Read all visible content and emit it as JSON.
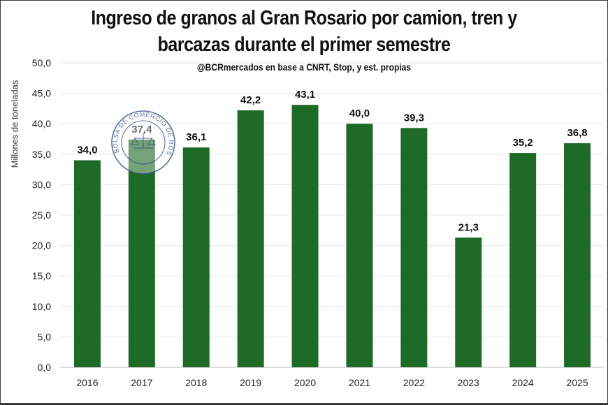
{
  "chart_data": {
    "type": "bar",
    "title_line1": "Ingreso de granos al Gran Rosario por camion, tren y",
    "title_line2": "barcazas durante el primer semestre",
    "subtitle": "@BCRmercados  en base a CNRT,  Stop, y est. propias",
    "ylabel": "Millones de toneladas",
    "xlabel": "",
    "categories": [
      "2016",
      "2017",
      "2018",
      "2019",
      "2020",
      "2021",
      "2022",
      "2023",
      "2024",
      "2025"
    ],
    "values": [
      34.0,
      37.4,
      36.1,
      42.2,
      43.1,
      40.0,
      39.3,
      21.3,
      35.2,
      36.8
    ],
    "value_labels": [
      "34,0",
      "37,4",
      "36,1",
      "42,2",
      "43,1",
      "40,0",
      "39,3",
      "21,3",
      "35,2",
      "36,8"
    ],
    "yticks": [
      "0,0",
      "5,0",
      "10,0",
      "15,0",
      "20,0",
      "25,0",
      "30,0",
      "35,0",
      "40,0",
      "45,0",
      "50,0"
    ],
    "ylim": [
      0,
      50
    ],
    "grid": true,
    "legend": "none",
    "bar_color": "#1e6b28",
    "watermark_text": "BOLSA DE COMERCIO DE ROSARIO"
  }
}
